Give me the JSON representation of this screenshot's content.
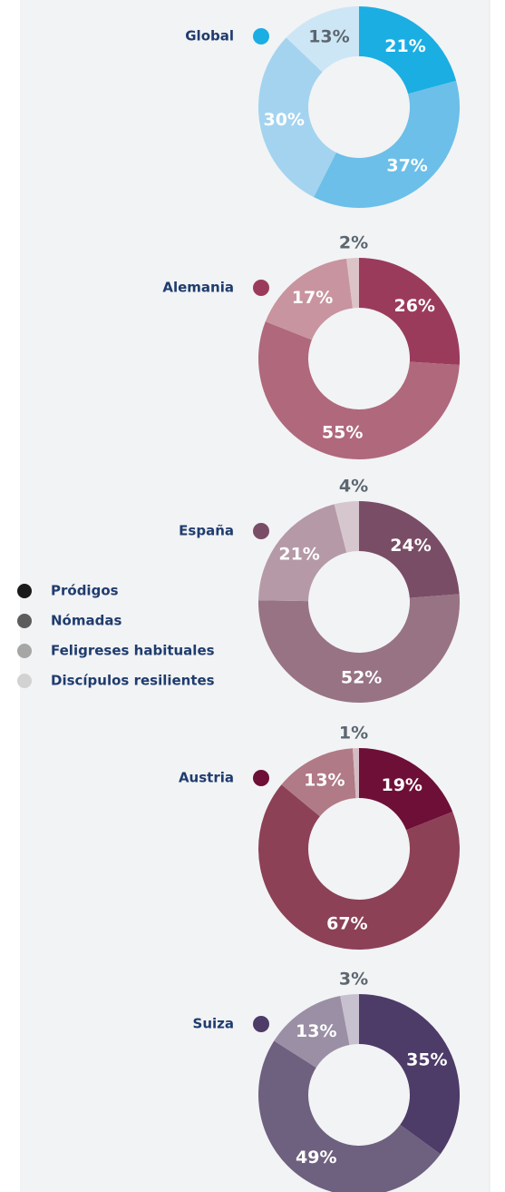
{
  "legend": [
    {
      "name": "Pródigos",
      "color": "#1a1a1a"
    },
    {
      "name": "Nómadas",
      "color": "#5c5c5c"
    },
    {
      "name": "Feligreses habituales",
      "color": "#a6a6a6"
    },
    {
      "name": "Discípulos resilientes",
      "color": "#d2d2d2"
    }
  ],
  "chart_data": [
    {
      "type": "donut",
      "title": "Global",
      "color": "#1aaee3",
      "values": [
        21,
        37,
        30,
        13
      ],
      "value_labels": [
        "21%",
        "37%",
        "30%",
        "13%"
      ],
      "colors": [
        "#1aaee3",
        "#6bbfe8",
        "#a3d3ef",
        "#cde6f5"
      ],
      "label_colors": [
        "#ffffff",
        "#ffffff",
        "#ffffff",
        "#5b6670"
      ]
    },
    {
      "type": "donut",
      "title": "Alemania",
      "color": "#9b3b5c",
      "values": [
        26,
        55,
        17,
        2
      ],
      "value_labels": [
        "26%",
        "55%",
        "17%",
        "2%"
      ],
      "colors": [
        "#9b3b5c",
        "#b0687c",
        "#c8949f",
        "#dcc3c8"
      ],
      "label_colors": [
        "#ffffff",
        "#ffffff",
        "#ffffff",
        "#5b6670"
      ]
    },
    {
      "type": "donut",
      "title": "España",
      "color": "#7a4d66",
      "values": [
        24,
        52,
        21,
        4
      ],
      "value_labels": [
        "24%",
        "52%",
        "21%",
        "4%"
      ],
      "colors": [
        "#7a4d66",
        "#977384",
        "#b599a7",
        "#d6c7ce"
      ],
      "label_colors": [
        "#ffffff",
        "#ffffff",
        "#ffffff",
        "#5b6670"
      ]
    },
    {
      "type": "donut",
      "title": "Austria",
      "color": "#6e0f37",
      "values": [
        19,
        67,
        13,
        1
      ],
      "value_labels": [
        "19%",
        "67%",
        "13%",
        "1%"
      ],
      "colors": [
        "#6e0f37",
        "#8c4156",
        "#b07a86",
        "#d5bcc2"
      ],
      "label_colors": [
        "#ffffff",
        "#ffffff",
        "#ffffff",
        "#5b6670"
      ]
    },
    {
      "type": "donut",
      "title": "Suiza",
      "color": "#4d3b68",
      "values": [
        35,
        49,
        13,
        3
      ],
      "value_labels": [
        "35%",
        "49%",
        "13%",
        "3%"
      ],
      "colors": [
        "#4d3b68",
        "#6e607f",
        "#9a8fa5",
        "#c7c0cf"
      ],
      "label_colors": [
        "#ffffff",
        "#ffffff",
        "#ffffff",
        "#5b6670"
      ]
    }
  ]
}
